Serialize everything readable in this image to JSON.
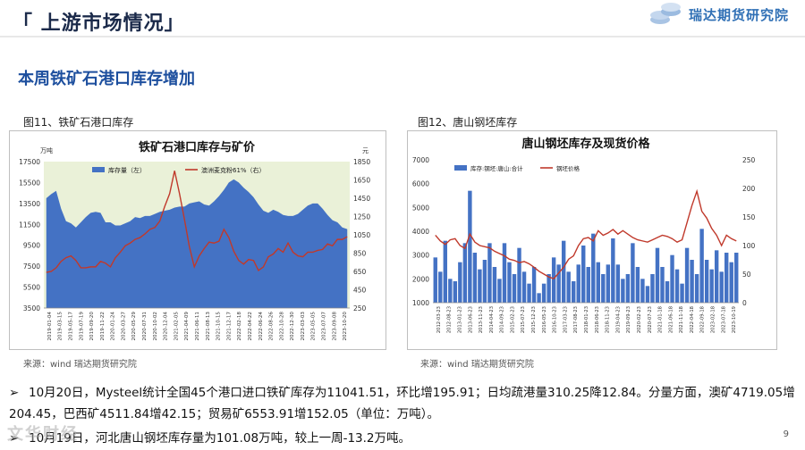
{
  "header": {
    "section_title": "「 上游市场情况」",
    "brand": "瑞达期货研究院"
  },
  "slide_heading": "本周铁矿石港口库存增加",
  "figures": {
    "left_label": "图11、铁矿石港口库存",
    "right_label": "图12、唐山钢坯库存",
    "left_source": "来源：wind   瑞达期货研究院",
    "right_source": "来源：wind   瑞达期货研究院"
  },
  "colors": {
    "bar_blue": "#4472c4",
    "line_red": "#c0392b",
    "heading_blue": "#1d4f9e",
    "brand_blue": "#2f6fb5"
  },
  "bullets": [
    "10月20日，Mysteel统计全国45个港口进口铁矿库存为11041.51，环比增195.91；日均疏港量310.25降12.84。分量方面，澳矿4719.05增204.45，巴西矿4511.84增42.15；贸易矿6553.91增152.05（单位：万吨）。",
    "10月19日，河北唐山钢坯库存量为101.08万吨，较上一周-13.2万吨。"
  ],
  "page_number": "9",
  "watermark": "文华财经",
  "chart_data": [
    {
      "type": "area-line",
      "title": "铁矿石港口库存与矿价",
      "left_unit": "万吨",
      "right_unit": "元",
      "legend": [
        "库存量（左）",
        "澳洲麦克粉61%（右）"
      ],
      "ylim_left": [
        3500,
        17500
      ],
      "ylim_right": [
        250,
        1850
      ],
      "yticks_left": [
        "17500",
        "15500",
        "13500",
        "11500",
        "9500",
        "7500",
        "5500",
        "3500"
      ],
      "yticks_right": [
        "1850",
        "1650",
        "1450",
        "1250",
        "1050",
        "850",
        "650",
        "450",
        "250"
      ],
      "xticks": [
        "2019-01-04",
        "2019-03-15",
        "2019-05-17",
        "2019-07-19",
        "2019-09-20",
        "2019-11-22",
        "2020-01-24",
        "2020-03-27",
        "2020-05-29",
        "2020-07-31",
        "2020-10-02",
        "2020-12-04",
        "2021-02-05",
        "2021-04-09",
        "2021-06-11",
        "2021-08-13",
        "2021-10-15",
        "2021-12-17",
        "2022-02-18",
        "2022-04-22",
        "2022-06-24",
        "2022-08-26",
        "2022-10-28",
        "2022-12-30",
        "2023-03-03",
        "2023-05-05",
        "2023-07-07",
        "2023-09-08",
        "2023-10-20"
      ],
      "series": [
        {
          "name": "库存量（左）",
          "axis": "left",
          "style": "area",
          "values": [
            14000,
            14400,
            14700,
            13000,
            11800,
            11600,
            11200,
            11700,
            12200,
            12600,
            12700,
            12600,
            11700,
            11700,
            11400,
            11400,
            11600,
            11800,
            12200,
            12100,
            12300,
            12300,
            12500,
            12700,
            12800,
            12900,
            13100,
            13200,
            13200,
            13500,
            13600,
            13700,
            13400,
            13300,
            13700,
            14200,
            14800,
            15500,
            15800,
            15500,
            15000,
            14600,
            14100,
            13400,
            12800,
            12600,
            12900,
            12700,
            12400,
            12300,
            12300,
            12500,
            12900,
            13300,
            13500,
            13500,
            13000,
            12400,
            11900,
            11700,
            11200,
            11040
          ]
        },
        {
          "name": "澳洲麦克粉61%（右）",
          "axis": "right",
          "style": "line",
          "values": [
            640,
            650,
            690,
            760,
            800,
            820,
            770,
            690,
            690,
            700,
            700,
            760,
            740,
            700,
            800,
            860,
            930,
            960,
            1000,
            1020,
            1060,
            1110,
            1130,
            1200,
            1360,
            1500,
            1750,
            1500,
            1220,
            920,
            700,
            820,
            900,
            970,
            960,
            980,
            1110,
            1020,
            870,
            770,
            730,
            780,
            770,
            660,
            700,
            810,
            840,
            900,
            860,
            960,
            860,
            820,
            810,
            860,
            860,
            880,
            890,
            950,
            930,
            1000,
            1000,
            1030
          ]
        }
      ]
    },
    {
      "type": "bar-line",
      "title": "唐山钢坯库存及现货价格",
      "legend": [
        "库存:钢坯:唐山:合计",
        "钢坯价格"
      ],
      "ylim_left": [
        1000,
        7000
      ],
      "ylim_right": [
        0,
        250
      ],
      "yticks_left": [
        "7000",
        "6000",
        "5000",
        "4000",
        "3000",
        "2000",
        "1000"
      ],
      "yticks_right": [
        "250",
        "200",
        "150",
        "100",
        "50",
        "0"
      ],
      "xticks": [
        "2012-03-23",
        "2012-08-23",
        "2013-01-23",
        "2013-06-23",
        "2013-11-23",
        "2014-04-23",
        "2014-09-23",
        "2015-02-23",
        "2015-07-23",
        "2015-12-23",
        "2016-05-23",
        "2016-10-23",
        "2017-03-23",
        "2017-08-23",
        "2018-01-23",
        "2018-06-23",
        "2018-11-23",
        "2019-04-23",
        "2019-09-23",
        "2020-02-23",
        "2020-07-23",
        "2021-01-18",
        "2021-06-18",
        "2021-11-18",
        "2022-04-18",
        "2022-09-18",
        "2023-02-18",
        "2023-07-18",
        "2023-10-19"
      ],
      "series": [
        {
          "name": "库存:钢坯:唐山:合计",
          "axis": "left",
          "style": "bar",
          "values": [
            2900,
            2300,
            3600,
            2000,
            1900,
            2700,
            3500,
            5700,
            3100,
            2400,
            2800,
            3500,
            2500,
            2000,
            3500,
            2700,
            2200,
            3300,
            2300,
            1800,
            2500,
            1400,
            1800,
            2200,
            2900,
            2600,
            3600,
            2300,
            1900,
            2600,
            3400,
            2500,
            3900,
            2700,
            2200,
            2600,
            3700,
            2600,
            2000,
            2200,
            3500,
            2500,
            2000,
            1700,
            2200,
            3300,
            2500,
            1900,
            3000,
            2400,
            1800,
            3300,
            2800,
            2200,
            4100,
            2800,
            2400,
            3200,
            2300,
            3100,
            2700,
            3100
          ]
        },
        {
          "name": "钢坯价格",
          "axis": "right",
          "style": "line",
          "values": [
            118,
            108,
            102,
            110,
            112,
            100,
            95,
            120,
            106,
            100,
            98,
            96,
            90,
            86,
            82,
            76,
            74,
            70,
            72,
            68,
            62,
            55,
            50,
            45,
            42,
            52,
            62,
            76,
            82,
            100,
            112,
            114,
            108,
            126,
            118,
            122,
            128,
            120,
            126,
            120,
            114,
            110,
            108,
            106,
            110,
            114,
            118,
            116,
            112,
            106,
            110,
            140,
            170,
            195,
            160,
            148,
            130,
            118,
            100,
            118,
            112,
            108
          ]
        }
      ]
    }
  ]
}
